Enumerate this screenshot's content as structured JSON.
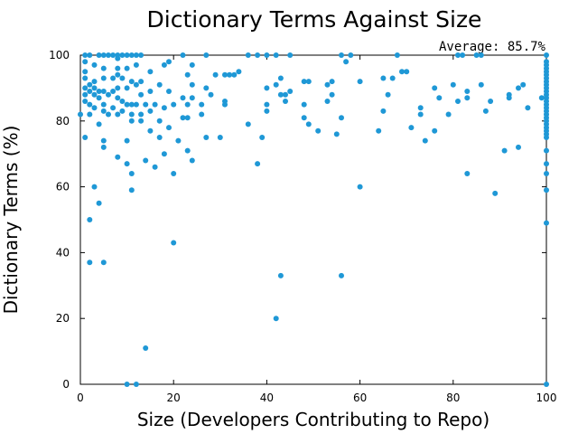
{
  "chart_data": {
    "type": "scatter",
    "title": "Dictionary Terms Against Size",
    "xlabel": "Size (Developers Contributing to Repo)",
    "ylabel": "Dictionary Terms (%)",
    "annotation": "Average: 85.7%",
    "xlim": [
      0,
      100
    ],
    "ylim": [
      0,
      100
    ],
    "xticks": [
      0,
      20,
      40,
      60,
      80,
      100
    ],
    "yticks": [
      0,
      20,
      40,
      60,
      80,
      100
    ],
    "grid": false,
    "legend": "none",
    "marker_color": "#1f98d6",
    "points": [
      [
        0,
        82
      ],
      [
        1,
        100
      ],
      [
        1,
        98
      ],
      [
        1,
        95
      ],
      [
        1,
        93
      ],
      [
        1,
        90
      ],
      [
        1,
        88
      ],
      [
        1,
        86
      ],
      [
        1,
        75
      ],
      [
        2,
        100
      ],
      [
        2,
        91
      ],
      [
        2,
        89
      ],
      [
        2,
        85
      ],
      [
        2,
        82
      ],
      [
        2,
        50
      ],
      [
        2,
        37
      ],
      [
        3,
        97
      ],
      [
        3,
        92
      ],
      [
        3,
        90
      ],
      [
        3,
        88
      ],
      [
        3,
        84
      ],
      [
        3,
        60
      ],
      [
        4,
        100
      ],
      [
        4,
        89
      ],
      [
        4,
        87
      ],
      [
        4,
        79
      ],
      [
        4,
        55
      ],
      [
        5,
        100
      ],
      [
        5,
        96
      ],
      [
        5,
        93
      ],
      [
        5,
        89
      ],
      [
        5,
        85
      ],
      [
        5,
        83
      ],
      [
        5,
        74
      ],
      [
        5,
        72
      ],
      [
        5,
        37
      ],
      [
        6,
        100
      ],
      [
        6,
        88
      ],
      [
        6,
        82
      ],
      [
        7,
        100
      ],
      [
        7,
        93
      ],
      [
        7,
        89
      ],
      [
        7,
        84
      ],
      [
        8,
        100
      ],
      [
        8,
        99
      ],
      [
        8,
        96
      ],
      [
        8,
        94
      ],
      [
        8,
        90
      ],
      [
        8,
        87
      ],
      [
        8,
        82
      ],
      [
        8,
        69
      ],
      [
        9,
        100
      ],
      [
        9,
        93
      ],
      [
        9,
        86
      ],
      [
        9,
        83
      ],
      [
        10,
        100
      ],
      [
        10,
        96
      ],
      [
        10,
        90
      ],
      [
        10,
        85
      ],
      [
        10,
        74
      ],
      [
        10,
        67
      ],
      [
        10,
        0
      ],
      [
        11,
        100
      ],
      [
        11,
        92
      ],
      [
        11,
        85
      ],
      [
        11,
        82
      ],
      [
        11,
        80
      ],
      [
        11,
        64
      ],
      [
        11,
        59
      ],
      [
        12,
        100
      ],
      [
        12,
        97
      ],
      [
        12,
        91
      ],
      [
        12,
        85
      ],
      [
        12,
        0
      ],
      [
        13,
        100
      ],
      [
        13,
        92
      ],
      [
        13,
        88
      ],
      [
        13,
        82
      ],
      [
        13,
        80
      ],
      [
        14,
        85
      ],
      [
        14,
        68
      ],
      [
        14,
        11
      ],
      [
        15,
        95
      ],
      [
        15,
        89
      ],
      [
        15,
        83
      ],
      [
        15,
        77
      ],
      [
        16,
        85
      ],
      [
        16,
        66
      ],
      [
        17,
        91
      ],
      [
        17,
        80
      ],
      [
        17,
        75
      ],
      [
        18,
        97
      ],
      [
        18,
        84
      ],
      [
        18,
        70
      ],
      [
        19,
        98
      ],
      [
        19,
        89
      ],
      [
        19,
        78
      ],
      [
        20,
        85
      ],
      [
        20,
        64
      ],
      [
        20,
        43
      ],
      [
        21,
        74
      ],
      [
        22,
        100
      ],
      [
        22,
        87
      ],
      [
        22,
        81
      ],
      [
        23,
        94
      ],
      [
        23,
        85
      ],
      [
        23,
        81
      ],
      [
        23,
        71
      ],
      [
        24,
        97
      ],
      [
        24,
        91
      ],
      [
        24,
        87
      ],
      [
        24,
        68
      ],
      [
        26,
        85
      ],
      [
        26,
        82
      ],
      [
        27,
        100
      ],
      [
        27,
        90
      ],
      [
        27,
        75
      ],
      [
        28,
        88
      ],
      [
        29,
        94
      ],
      [
        30,
        75
      ],
      [
        31,
        94
      ],
      [
        31,
        86
      ],
      [
        31,
        85
      ],
      [
        32,
        94
      ],
      [
        33,
        94
      ],
      [
        34,
        95
      ],
      [
        36,
        100
      ],
      [
        36,
        79
      ],
      [
        38,
        100
      ],
      [
        38,
        67
      ],
      [
        39,
        75
      ],
      [
        40,
        100
      ],
      [
        40,
        90
      ],
      [
        40,
        85
      ],
      [
        40,
        83
      ],
      [
        42,
        100
      ],
      [
        42,
        91
      ],
      [
        42,
        20
      ],
      [
        43,
        93
      ],
      [
        43,
        88
      ],
      [
        43,
        33
      ],
      [
        44,
        88
      ],
      [
        44,
        86
      ],
      [
        45,
        100
      ],
      [
        45,
        89
      ],
      [
        48,
        92
      ],
      [
        48,
        85
      ],
      [
        48,
        81
      ],
      [
        49,
        92
      ],
      [
        49,
        79
      ],
      [
        51,
        77
      ],
      [
        53,
        91
      ],
      [
        53,
        86
      ],
      [
        54,
        92
      ],
      [
        54,
        88
      ],
      [
        55,
        76
      ],
      [
        56,
        100
      ],
      [
        56,
        81
      ],
      [
        56,
        33
      ],
      [
        57,
        98
      ],
      [
        58,
        100
      ],
      [
        60,
        92
      ],
      [
        60,
        60
      ],
      [
        64,
        77
      ],
      [
        65,
        93
      ],
      [
        65,
        83
      ],
      [
        66,
        88
      ],
      [
        67,
        93
      ],
      [
        68,
        100
      ],
      [
        69,
        95
      ],
      [
        70,
        95
      ],
      [
        71,
        78
      ],
      [
        73,
        84
      ],
      [
        73,
        82
      ],
      [
        74,
        74
      ],
      [
        76,
        90
      ],
      [
        76,
        77
      ],
      [
        77,
        87
      ],
      [
        79,
        82
      ],
      [
        80,
        91
      ],
      [
        81,
        100
      ],
      [
        81,
        86
      ],
      [
        82,
        100
      ],
      [
        83,
        89
      ],
      [
        83,
        87
      ],
      [
        83,
        64
      ],
      [
        85,
        100
      ],
      [
        86,
        100
      ],
      [
        86,
        91
      ],
      [
        87,
        83
      ],
      [
        88,
        86
      ],
      [
        89,
        58
      ],
      [
        91,
        71
      ],
      [
        92,
        88
      ],
      [
        92,
        87
      ],
      [
        94,
        90
      ],
      [
        94,
        72
      ],
      [
        95,
        91
      ],
      [
        96,
        84
      ],
      [
        99,
        87
      ],
      [
        100,
        100
      ],
      [
        100,
        98
      ],
      [
        100,
        97
      ],
      [
        100,
        96
      ],
      [
        100,
        95
      ],
      [
        100,
        94
      ],
      [
        100,
        93
      ],
      [
        100,
        92
      ],
      [
        100,
        91
      ],
      [
        100,
        90
      ],
      [
        100,
        89
      ],
      [
        100,
        88
      ],
      [
        100,
        87
      ],
      [
        100,
        86
      ],
      [
        100,
        85
      ],
      [
        100,
        84
      ],
      [
        100,
        83
      ],
      [
        100,
        82
      ],
      [
        100,
        81
      ],
      [
        100,
        80
      ],
      [
        100,
        79
      ],
      [
        100,
        78
      ],
      [
        100,
        77
      ],
      [
        100,
        76
      ],
      [
        100,
        75
      ],
      [
        100,
        71
      ],
      [
        100,
        67
      ],
      [
        100,
        64
      ],
      [
        100,
        59
      ],
      [
        100,
        49
      ],
      [
        100,
        0
      ]
    ]
  }
}
